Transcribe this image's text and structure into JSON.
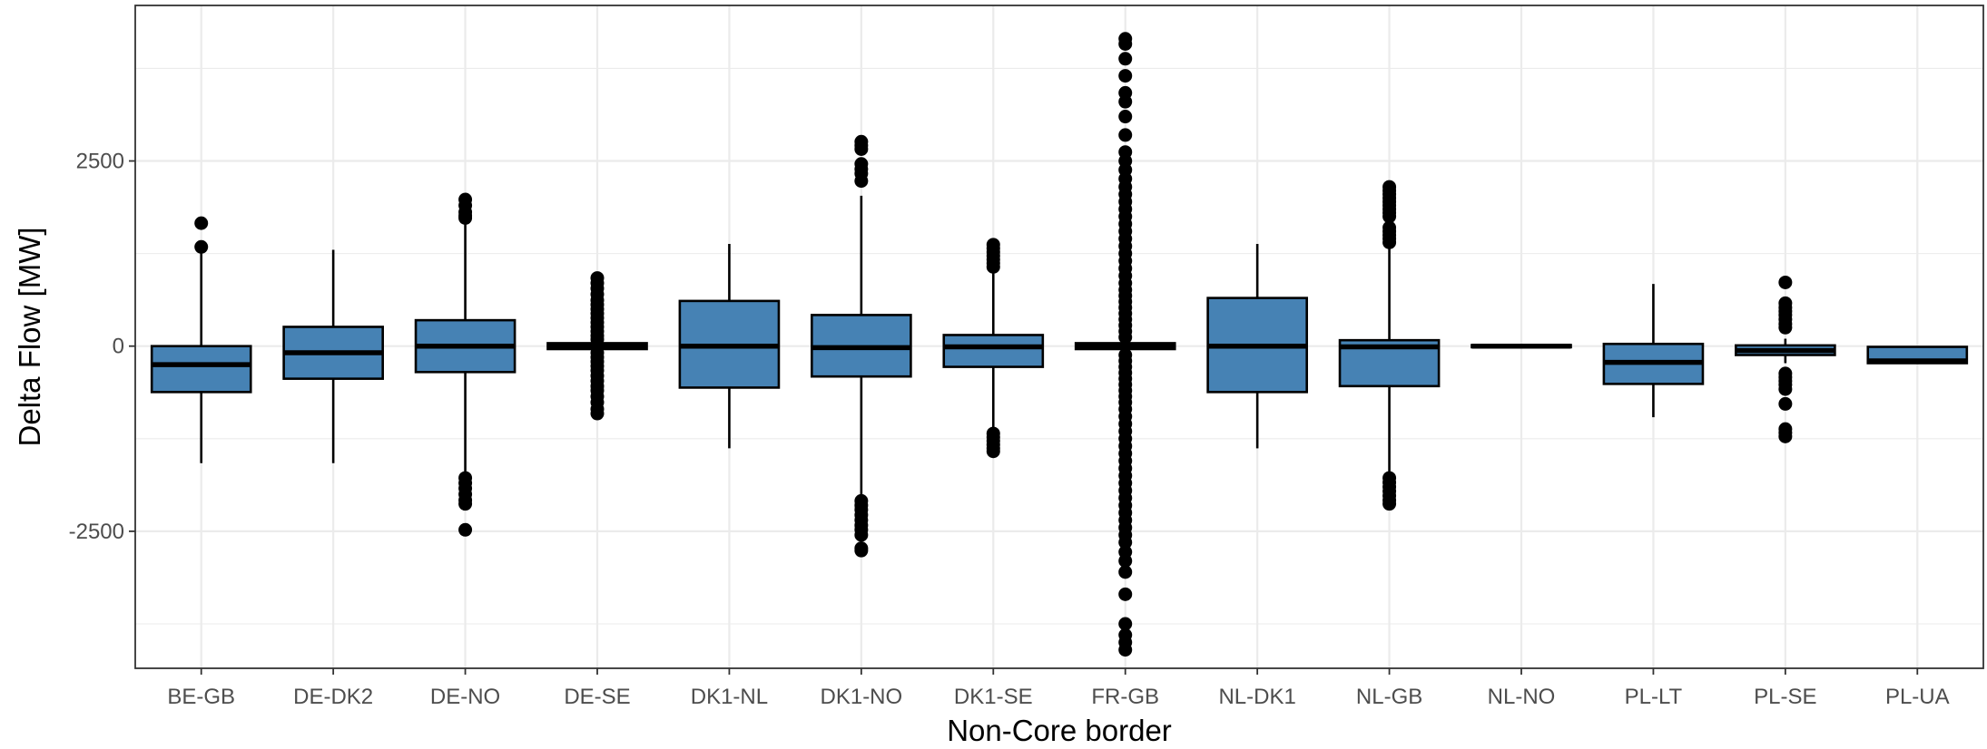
{
  "chart_data": {
    "type": "boxplot",
    "xlabel": "Non-Core border",
    "ylabel": "Delta Flow [MW]",
    "ylim": [
      -4350,
      4600
    ],
    "yticks": [
      -2500,
      0,
      2500
    ],
    "ytick_labels": [
      "-2500",
      "0",
      "2500"
    ],
    "grid": true,
    "fill_color": "#4682b4",
    "outline_color": "#000000",
    "categories": [
      "BE-GB",
      "DE-DK2",
      "DE-NO",
      "DE-SE",
      "DK1-NL",
      "DK1-NO",
      "DK1-SE",
      "FR-GB",
      "NL-DK1",
      "NL-GB",
      "NL-NO",
      "PL-LT",
      "PL-SE",
      "PL-UA"
    ],
    "boxes": [
      {
        "category": "BE-GB",
        "whisker_low": -1580,
        "q1": -620,
        "median": -250,
        "q3": 0,
        "whisker_high": 1380,
        "outliers": [
          1660,
          1340
        ]
      },
      {
        "category": "DE-DK2",
        "whisker_low": -1580,
        "q1": -440,
        "median": -90,
        "q3": 260,
        "whisker_high": 1300,
        "outliers": []
      },
      {
        "category": "DE-NO",
        "whisker_low": -1700,
        "q1": -350,
        "median": 0,
        "q3": 350,
        "whisker_high": 1700,
        "outliers": [
          1980,
          1900,
          1810,
          1760,
          1730,
          -1780,
          -1850,
          -1920,
          -2000,
          -2080,
          -2130,
          -2480
        ]
      },
      {
        "category": "DE-SE",
        "whisker_low": -40,
        "q1": -40,
        "median": 0,
        "q3": 40,
        "whisker_high": 40,
        "outliers": [
          920,
          850,
          780,
          700,
          620,
          560,
          500,
          440,
          380,
          320,
          260,
          200,
          140,
          90,
          -90,
          -150,
          -210,
          -270,
          -330,
          -400,
          -470,
          -540,
          -600,
          -680,
          -760,
          -850,
          -910
        ]
      },
      {
        "category": "DK1-NL",
        "whisker_low": -1380,
        "q1": -560,
        "median": 0,
        "q3": 610,
        "whisker_high": 1380,
        "outliers": []
      },
      {
        "category": "DK1-NO",
        "whisker_low": -2040,
        "q1": -410,
        "median": -20,
        "q3": 420,
        "whisker_high": 2030,
        "outliers": [
          2760,
          2710,
          2660,
          2460,
          2390,
          2330,
          2230,
          -2090,
          -2150,
          -2210,
          -2280,
          -2350,
          -2420,
          -2480,
          -2550,
          -2730,
          -2760
        ]
      },
      {
        "category": "DK1-SE",
        "whisker_low": -1160,
        "q1": -280,
        "median": -10,
        "q3": 150,
        "whisker_high": 1040,
        "outliers": [
          1370,
          1320,
          1270,
          1220,
          1170,
          1120,
          1070,
          -1180,
          -1230,
          -1280,
          -1330,
          -1380,
          -1420
        ]
      },
      {
        "category": "FR-GB",
        "whisker_low": -60,
        "q1": -40,
        "median": 0,
        "q3": 40,
        "whisker_high": 60,
        "outliers": [
          4150,
          4080,
          3880,
          3650,
          3420,
          3300,
          3100,
          2850,
          2620,
          2500,
          2380,
          2260,
          2150,
          2050,
          1950,
          1850,
          1750,
          1650,
          1550,
          1450,
          1350,
          1250,
          1150,
          1050,
          950,
          850,
          760,
          680,
          600,
          520,
          440,
          360,
          280,
          200,
          120,
          -120,
          -200,
          -280,
          -360,
          -440,
          -520,
          -600,
          -680,
          -760,
          -850,
          -950,
          -1050,
          -1150,
          -1250,
          -1350,
          -1450,
          -1550,
          -1650,
          -1750,
          -1850,
          -1950,
          -2050,
          -2150,
          -2250,
          -2350,
          -2450,
          -2550,
          -2650,
          -2780,
          -2900,
          -3050,
          -3350,
          -3750,
          -3900,
          -4000,
          -4100
        ]
      },
      {
        "category": "NL-DK1",
        "whisker_low": -1380,
        "q1": -620,
        "median": 0,
        "q3": 650,
        "whisker_high": 1380,
        "outliers": []
      },
      {
        "category": "NL-GB",
        "whisker_low": -1720,
        "q1": -540,
        "median": -10,
        "q3": 80,
        "whisker_high": 1320,
        "outliers": [
          2150,
          2100,
          2050,
          2000,
          1950,
          1900,
          1850,
          1800,
          1750,
          1600,
          1550,
          1500,
          1450,
          1400,
          -1780,
          -1840,
          -1900,
          -1960,
          -2020,
          -2080,
          -2130
        ]
      },
      {
        "category": "NL-NO",
        "whisker_low": -20,
        "q1": -15,
        "median": 0,
        "q3": 15,
        "whisker_high": 20,
        "outliers": []
      },
      {
        "category": "PL-LT",
        "whisker_low": -960,
        "q1": -510,
        "median": -220,
        "q3": 30,
        "whisker_high": 840,
        "outliers": []
      },
      {
        "category": "PL-SE",
        "whisker_low": -230,
        "q1": -120,
        "median": -60,
        "q3": 10,
        "whisker_high": 100,
        "outliers": [
          860,
          580,
          520,
          470,
          420,
          360,
          300,
          250,
          -370,
          -420,
          -470,
          -520,
          -580,
          -780,
          -1120,
          -1170,
          -1220
        ]
      },
      {
        "category": "PL-UA",
        "whisker_low": -230,
        "q1": -230,
        "median": -200,
        "q3": -10,
        "whisker_high": -10,
        "outliers": []
      }
    ]
  }
}
